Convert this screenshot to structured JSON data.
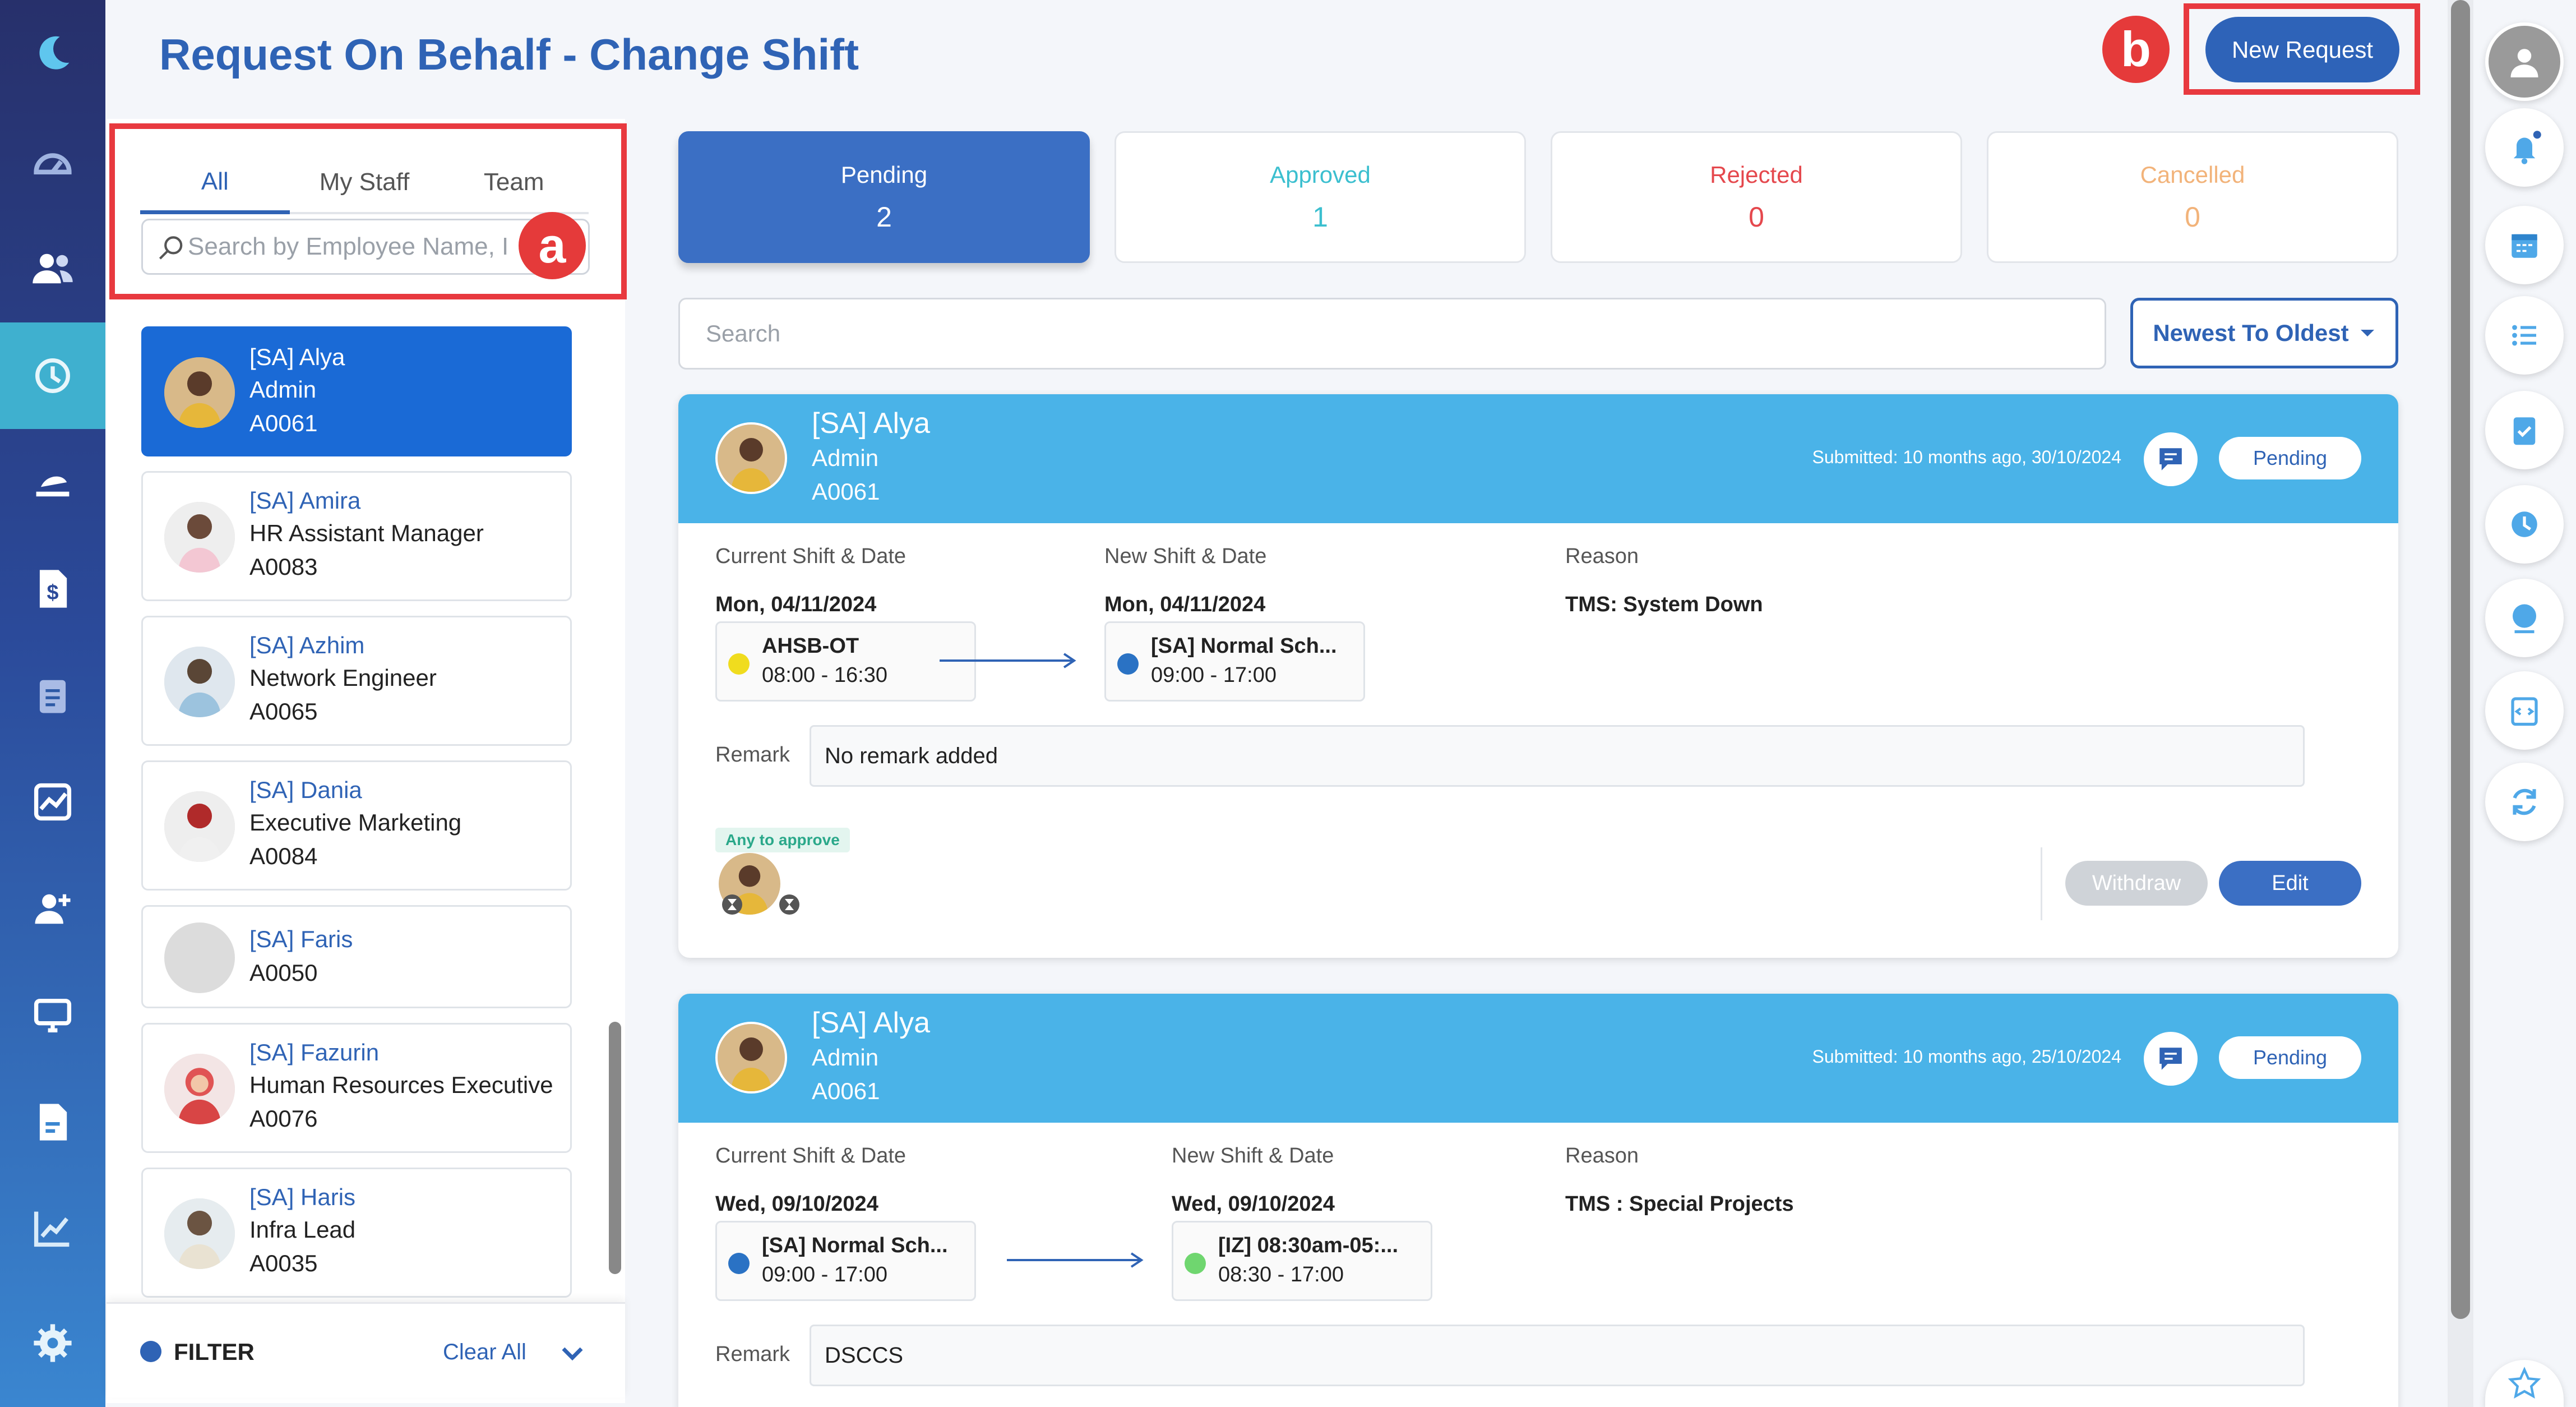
{
  "page": {
    "title": "Request On Behalf - Change Shift"
  },
  "annotations": {
    "a": "a",
    "b": "b"
  },
  "header": {
    "new_request_label": "New Request"
  },
  "staff_panel": {
    "tabs": [
      {
        "label": "All",
        "active": true
      },
      {
        "label": "My Staff",
        "active": false
      },
      {
        "label": "Team",
        "active": false
      }
    ],
    "search_placeholder": "Search by Employee Name, I",
    "employees": [
      {
        "name": "[SA] Alya",
        "role": "Admin",
        "code": "A0061",
        "selected": true
      },
      {
        "name": "[SA] Amira",
        "role": "HR Assistant Manager",
        "code": "A0083"
      },
      {
        "name": "[SA] Azhim",
        "role": "Network Engineer",
        "code": "A0065"
      },
      {
        "name": "[SA] Dania",
        "role": "Executive Marketing",
        "code": "A0084"
      },
      {
        "name": "[SA] Faris",
        "role": "",
        "code": "A0050"
      },
      {
        "name": "[SA] Fazurin",
        "role": "Human Resources Executive",
        "code": "A0076"
      },
      {
        "name": "[SA] Haris",
        "role": "Infra Lead",
        "code": "A0035"
      }
    ],
    "filter": {
      "label": "FILTER",
      "clear_all": "Clear All"
    }
  },
  "status_tiles": [
    {
      "label": "Pending",
      "count": "2",
      "color": "#ffffff"
    },
    {
      "label": "Approved",
      "count": "1",
      "color": "#3bbfcf"
    },
    {
      "label": "Rejected",
      "count": "0",
      "color": "#e5484d"
    },
    {
      "label": "Cancelled",
      "count": "0",
      "color": "#f2b37a"
    }
  ],
  "main_search": {
    "placeholder": "Search"
  },
  "sort": {
    "label": "Newest To Oldest"
  },
  "requests": [
    {
      "name": "[SA] Alya",
      "role": "Admin",
      "code": "A0061",
      "submitted": "Submitted: 10 months ago, 30/10/2024",
      "status": "Pending",
      "current_label": "Current Shift & Date",
      "current_date": "Mon, 04/11/2024",
      "current_shift": {
        "name": "AHSB-OT",
        "time": "08:00 - 16:30",
        "dot": "#f0dc1e"
      },
      "new_label": "New Shift & Date",
      "new_date": "Mon, 04/11/2024",
      "new_shift": {
        "name": "[SA] Normal Sch...",
        "time": "09:00 - 17:00",
        "dot": "#2a72c4"
      },
      "reason_label": "Reason",
      "reason": "TMS: System Down",
      "remark_label": "Remark",
      "remark": "No remark added",
      "approver_tag": "Any to approve",
      "withdraw_label": "Withdraw",
      "edit_label": "Edit"
    },
    {
      "name": "[SA] Alya",
      "role": "Admin",
      "code": "A0061",
      "submitted": "Submitted: 10 months ago, 25/10/2024",
      "status": "Pending",
      "current_label": "Current Shift & Date",
      "current_date": "Wed, 09/10/2024",
      "current_shift": {
        "name": "[SA] Normal Sch...",
        "time": "09:00 - 17:00",
        "dot": "#2a72c4"
      },
      "new_label": "New Shift & Date",
      "new_date": "Wed, 09/10/2024",
      "new_shift": {
        "name": "[IZ] 08:30am-05:...",
        "time": "08:30 - 17:00",
        "dot": "#6fd66f"
      },
      "reason_label": "Reason",
      "reason": "TMS : Special Projects",
      "remark_label": "Remark",
      "remark": "DSCCS"
    }
  ],
  "icons": {
    "left_nav": [
      "moon-logo-icon",
      "dashboard-icon",
      "people-icon",
      "history-icon",
      "leave-icon",
      "payroll-icon",
      "clipboard-icon",
      "chart-icon",
      "add-user-icon",
      "monitor-icon",
      "document-icon",
      "analytics-icon",
      "settings-icon"
    ],
    "right_rail": [
      "avatar-icon",
      "bell-icon",
      "calendar-icon",
      "list-icon",
      "clipboard-check-icon",
      "clock-icon",
      "globe-icon",
      "code-icon",
      "refresh-icon",
      "star-icon"
    ]
  }
}
